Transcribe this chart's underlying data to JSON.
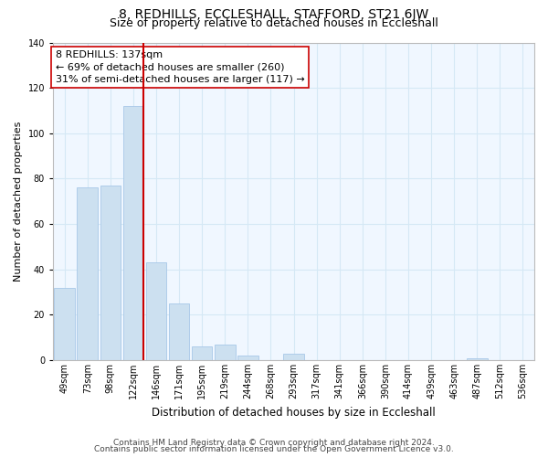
{
  "title": "8, REDHILLS, ECCLESHALL, STAFFORD, ST21 6JW",
  "subtitle": "Size of property relative to detached houses in Eccleshall",
  "xlabel": "Distribution of detached houses by size in Eccleshall",
  "ylabel": "Number of detached properties",
  "bar_labels": [
    "49sqm",
    "73sqm",
    "98sqm",
    "122sqm",
    "146sqm",
    "171sqm",
    "195sqm",
    "219sqm",
    "244sqm",
    "268sqm",
    "293sqm",
    "317sqm",
    "341sqm",
    "366sqm",
    "390sqm",
    "414sqm",
    "439sqm",
    "463sqm",
    "487sqm",
    "512sqm",
    "536sqm"
  ],
  "bar_values": [
    32,
    76,
    77,
    112,
    43,
    25,
    6,
    7,
    2,
    0,
    3,
    0,
    0,
    0,
    0,
    0,
    0,
    0,
    1,
    0,
    0
  ],
  "bar_color": "#cce0f0",
  "bar_edge_color": "#a8c8e8",
  "vline_color": "#cc0000",
  "vline_bar_index": 3,
  "ylim": [
    0,
    140
  ],
  "yticks": [
    0,
    20,
    40,
    60,
    80,
    100,
    120,
    140
  ],
  "annotation_line1": "8 REDHILLS: 137sqm",
  "annotation_line2": "← 69% of detached houses are smaller (260)",
  "annotation_line3": "31% of semi-detached houses are larger (117) →",
  "annotation_box_color": "#ffffff",
  "annotation_box_edge": "#cc0000",
  "footer1": "Contains HM Land Registry data © Crown copyright and database right 2024.",
  "footer2": "Contains public sector information licensed under the Open Government Licence v3.0.",
  "title_fontsize": 10,
  "subtitle_fontsize": 9,
  "xlabel_fontsize": 8.5,
  "ylabel_fontsize": 8,
  "tick_fontsize": 7,
  "annotation_fontsize": 8,
  "footer_fontsize": 6.5,
  "grid_color": "#d5e8f5",
  "background_color": "#f0f7ff"
}
